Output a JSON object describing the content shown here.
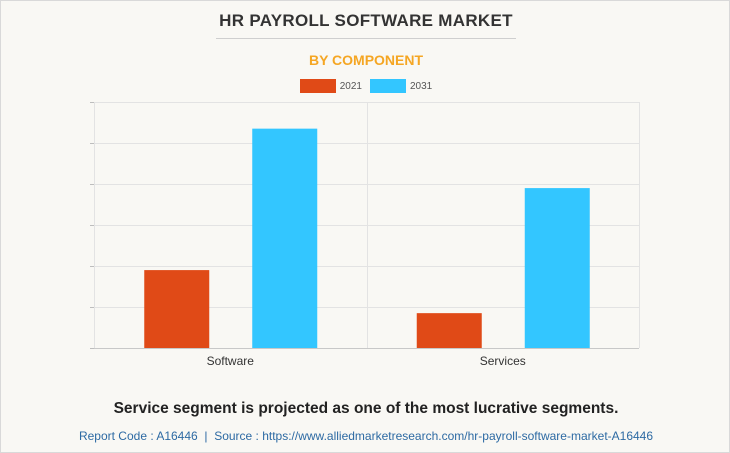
{
  "title": "HR PAYROLL SOFTWARE MARKET",
  "subtitle": "BY COMPONENT",
  "caption": "Service segment is projected as one of the most lucrative segments.",
  "footer": {
    "report_code": "Report Code : A16446",
    "separator": "|",
    "source": "Source : https://www.alliedmarketresearch.com/hr-payroll-software-market-A16446"
  },
  "colors": {
    "series_2021": "#e04a17",
    "series_2031": "#33c6ff",
    "grid": "#e3e3e3",
    "subtitle": "#f5a623"
  },
  "chart_data": {
    "type": "bar",
    "title": "HR PAYROLL SOFTWARE MARKET",
    "subtitle": "BY COMPONENT",
    "categories": [
      "Software",
      "Services"
    ],
    "series": [
      {
        "name": "2021",
        "values": [
          19,
          8.5
        ]
      },
      {
        "name": "2031",
        "values": [
          53.5,
          39
        ]
      }
    ],
    "ylim": [
      0,
      60
    ],
    "y_tick_count": 6,
    "xlabel": "",
    "ylabel": "",
    "grid": true,
    "legend": "top-center"
  }
}
